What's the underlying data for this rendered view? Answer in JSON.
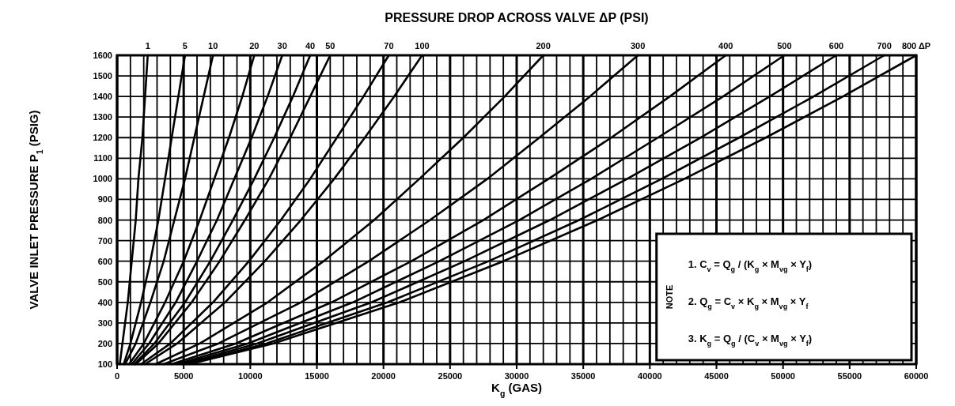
{
  "chart_data": {
    "type": "line",
    "title": "PRESSURE DROP ACROSS VALVE ΔP (PSI)",
    "xlabel": "K$_{g}$ (GAS)",
    "ylabel": "VALVE INLET PRESSURE P$_{1}$ (PSIG)",
    "xlim": [
      0,
      60000
    ],
    "ylim": [
      100,
      1600
    ],
    "xticks": [
      0,
      {
        "value": 1000,
        "label": null
      },
      {
        "value": 2000,
        "label": null
      },
      {
        "value": 3000,
        "label": null
      },
      {
        "value": 4000,
        "label": null
      },
      5000,
      {
        "value": 6000,
        "label": null
      },
      {
        "value": 7000,
        "label": null
      },
      {
        "value": 8000,
        "label": null
      },
      {
        "value": 9000,
        "label": null
      },
      10000,
      {
        "value": 11000,
        "label": null
      },
      {
        "value": 12000,
        "label": null
      },
      {
        "value": 13000,
        "label": null
      },
      {
        "value": 14000,
        "label": null
      },
      15000,
      {
        "value": 16000,
        "label": null
      },
      {
        "value": 17000,
        "label": null
      },
      {
        "value": 18000,
        "label": null
      },
      {
        "value": 19000,
        "label": null
      },
      20000,
      {
        "value": 21000,
        "label": null
      },
      {
        "value": 22000,
        "label": null
      },
      {
        "value": 23000,
        "label": null
      },
      {
        "value": 24000,
        "label": null
      },
      25000,
      {
        "value": 26000,
        "label": null
      },
      {
        "value": 27000,
        "label": null
      },
      {
        "value": 28000,
        "label": null
      },
      {
        "value": 29000,
        "label": null
      },
      30000,
      {
        "value": 31000,
        "label": null
      },
      {
        "value": 32000,
        "label": null
      },
      {
        "value": 33000,
        "label": null
      },
      {
        "value": 34000,
        "label": null
      },
      35000,
      {
        "value": 36000,
        "label": null
      },
      {
        "value": 37000,
        "label": null
      },
      {
        "value": 38000,
        "label": null
      },
      {
        "value": 39000,
        "label": null
      },
      40000,
      {
        "value": 41000,
        "label": null
      },
      {
        "value": 42000,
        "label": null
      },
      {
        "value": 43000,
        "label": null
      },
      {
        "value": 44000,
        "label": null
      },
      45000,
      {
        "value": 46000,
        "label": null
      },
      {
        "value": 47000,
        "label": null
      },
      {
        "value": 48000,
        "label": null
      },
      {
        "value": 49000,
        "label": null
      },
      50000,
      {
        "value": 51000,
        "label": null
      },
      {
        "value": 52000,
        "label": null
      },
      {
        "value": 53000,
        "label": null
      },
      {
        "value": 54000,
        "label": null
      },
      55000,
      {
        "value": 56000,
        "label": null
      },
      {
        "value": 57000,
        "label": null
      },
      {
        "value": 58000,
        "label": null
      },
      {
        "value": 59000,
        "label": null
      },
      60000
    ],
    "yticks": [
      100,
      200,
      300,
      400,
      500,
      600,
      700,
      800,
      900,
      1000,
      1100,
      1200,
      1300,
      1400,
      1500,
      1600
    ],
    "grid": true,
    "series": [
      {
        "name": "1",
        "color": "#000000",
        "x": [
          200,
          400,
          800,
          1100,
          1400,
          1600,
          1900,
          2100,
          2300
        ],
        "values": [
          100,
          200,
          400,
          600,
          800,
          1000,
          1200,
          1400,
          1600
        ]
      },
      {
        "name": "5",
        "color": "#000000",
        "x": [
          500,
          1000,
          1800,
          2500,
          3100,
          3600,
          4100,
          4600,
          5100
        ],
        "values": [
          100,
          200,
          400,
          600,
          800,
          1000,
          1200,
          1400,
          1600
        ]
      },
      {
        "name": "10",
        "color": "#000000",
        "x": [
          600,
          1400,
          2500,
          3500,
          4300,
          5100,
          5800,
          6500,
          7200
        ],
        "values": [
          100,
          200,
          400,
          600,
          800,
          1000,
          1200,
          1400,
          1600
        ]
      },
      {
        "name": "20",
        "color": "#000000",
        "x": [
          900,
          2000,
          3600,
          5000,
          6200,
          7300,
          8400,
          9400,
          10300
        ],
        "values": [
          100,
          200,
          400,
          600,
          800,
          1000,
          1200,
          1400,
          1600
        ]
      },
      {
        "name": "30",
        "color": "#000000",
        "x": [
          1100,
          2400,
          4400,
          6000,
          7500,
          8800,
          10100,
          11300,
          12400
        ],
        "values": [
          100,
          200,
          400,
          600,
          800,
          1000,
          1200,
          1400,
          1600
        ]
      },
      {
        "name": "40",
        "color": "#000000",
        "x": [
          1300,
          2800,
          5100,
          7000,
          8700,
          10300,
          11800,
          13200,
          14500
        ],
        "values": [
          100,
          200,
          400,
          600,
          800,
          1000,
          1200,
          1400,
          1600
        ]
      },
      {
        "name": "50",
        "color": "#000000",
        "x": [
          1400,
          3100,
          5600,
          7700,
          9600,
          11400,
          13000,
          14500,
          16000
        ],
        "values": [
          100,
          200,
          400,
          600,
          800,
          1000,
          1200,
          1400,
          1600
        ]
      },
      {
        "name": "70",
        "color": "#000000",
        "x": [
          1800,
          4000,
          7200,
          9900,
          12300,
          14500,
          16500,
          18500,
          20400
        ],
        "values": [
          100,
          200,
          400,
          600,
          800,
          1000,
          1200,
          1400,
          1600
        ]
      },
      {
        "name": "100",
        "color": "#000000",
        "x": [
          2100,
          4500,
          8100,
          11100,
          13800,
          16300,
          18600,
          20800,
          22900
        ],
        "values": [
          100,
          200,
          400,
          600,
          800,
          1000,
          1200,
          1400,
          1600
        ]
      },
      {
        "name": "200",
        "color": "#000000",
        "x": [
          2900,
          6200,
          11300,
          15500,
          19300,
          22700,
          26000,
          29100,
          32000
        ],
        "values": [
          100,
          200,
          400,
          600,
          800,
          1000,
          1200,
          1400,
          1600
        ]
      },
      {
        "name": "300",
        "color": "#000000",
        "x": [
          3500,
          7600,
          13800,
          18900,
          23500,
          27800,
          31700,
          35500,
          39100
        ],
        "values": [
          100,
          200,
          400,
          600,
          800,
          1000,
          1200,
          1400,
          1600
        ]
      },
      {
        "name": "400",
        "color": "#000000",
        "x": [
          4100,
          8900,
          16100,
          22100,
          27500,
          32400,
          37100,
          41500,
          45700
        ],
        "values": [
          100,
          200,
          400,
          600,
          800,
          1000,
          1200,
          1400,
          1600
        ]
      },
      {
        "name": "500",
        "color": "#000000",
        "x": [
          4500,
          9800,
          17700,
          24200,
          30200,
          35600,
          40600,
          45500,
          50100
        ],
        "values": [
          100,
          200,
          400,
          600,
          800,
          1000,
          1200,
          1400,
          1600
        ]
      },
      {
        "name": "600",
        "color": "#000000",
        "x": [
          4900,
          10500,
          19100,
          26100,
          32500,
          38300,
          43800,
          49000,
          54000
        ],
        "values": [
          100,
          200,
          400,
          600,
          800,
          1000,
          1200,
          1400,
          1600
        ]
      },
      {
        "name": "700",
        "color": "#000000",
        "x": [
          5200,
          11200,
          20300,
          27900,
          34700,
          40900,
          46700,
          52300,
          57600
        ],
        "values": [
          100,
          200,
          400,
          600,
          800,
          1000,
          1200,
          1400,
          1600
        ]
      },
      {
        "name": "800 ΔP",
        "color": "#000000",
        "x": [
          5400,
          11700,
          21200,
          29000,
          36100,
          42600,
          48700,
          54500,
          60000
        ],
        "values": [
          100,
          200,
          400,
          600,
          800,
          1000,
          1200,
          1400,
          1600
        ]
      }
    ],
    "annotations": [
      "NOTE",
      "1. C$_{v}$ = Q$_{g}$ / (K$_{g}$ × M$_{vg}$ × Y$_{f}$)",
      "2. Q$_{g}$ = C$_{v}$ × K$_{g}$ × M$_{vg}$ × Y$_{f}$",
      "3. K$_{g}$ = Q$_{g}$ / (C$_{v}$ × M$_{vg}$ × Y$_{f}$)"
    ]
  }
}
